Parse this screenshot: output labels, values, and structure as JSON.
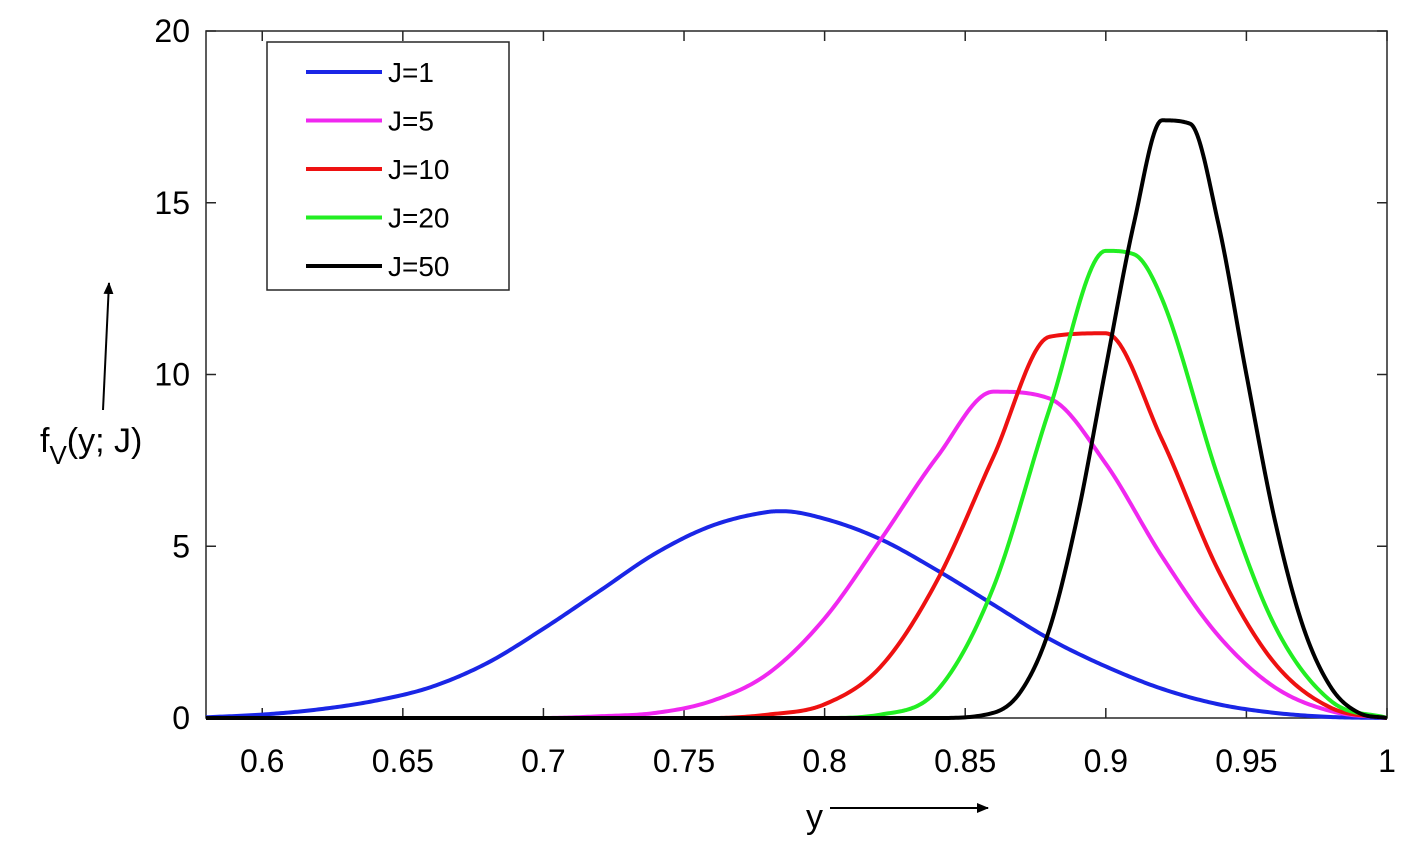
{
  "chart_data": {
    "type": "line",
    "title": "",
    "xlabel": "y",
    "ylabel_main": "f",
    "ylabel_subscript": "V",
    "ylabel_rest": "(y; J)",
    "xlim": [
      0.58,
      1.0
    ],
    "ylim": [
      0,
      20
    ],
    "x_ticks": [
      0.6,
      0.65,
      0.7,
      0.75,
      0.8,
      0.85,
      0.9,
      0.95,
      1.0
    ],
    "x_tick_labels": [
      "0.6",
      "0.65",
      "0.7",
      "0.75",
      "0.8",
      "0.85",
      "0.9",
      "0.95",
      "1"
    ],
    "y_ticks": [
      0,
      5,
      10,
      15,
      20
    ],
    "y_tick_labels": [
      "0",
      "5",
      "10",
      "15",
      "20"
    ],
    "grid": false,
    "legend_position": "top-left",
    "series": [
      {
        "name": "J=1",
        "color": "#1a26e6",
        "x": [
          0.58,
          0.6,
          0.62,
          0.64,
          0.66,
          0.68,
          0.7,
          0.72,
          0.74,
          0.76,
          0.78,
          0.785,
          0.8,
          0.82,
          0.84,
          0.86,
          0.88,
          0.9,
          0.92,
          0.94,
          0.96,
          0.98,
          1.0
        ],
        "y": [
          0.02,
          0.1,
          0.25,
          0.5,
          0.9,
          1.6,
          2.6,
          3.7,
          4.8,
          5.6,
          6.0,
          6.02,
          5.8,
          5.2,
          4.3,
          3.3,
          2.3,
          1.5,
          0.85,
          0.4,
          0.15,
          0.03,
          0.0
        ]
      },
      {
        "name": "J=5",
        "color": "#f028f0",
        "x": [
          0.58,
          0.7,
          0.72,
          0.74,
          0.76,
          0.78,
          0.8,
          0.82,
          0.84,
          0.86,
          0.88,
          0.9,
          0.92,
          0.94,
          0.96,
          0.98,
          1.0
        ],
        "y": [
          0.0,
          0.0,
          0.05,
          0.15,
          0.5,
          1.3,
          2.9,
          5.2,
          7.6,
          9.5,
          9.3,
          7.4,
          4.7,
          2.4,
          0.9,
          0.2,
          0.0
        ]
      },
      {
        "name": "J=10",
        "color": "#ee1111",
        "x": [
          0.58,
          0.76,
          0.78,
          0.8,
          0.82,
          0.84,
          0.86,
          0.88,
          0.9,
          0.92,
          0.94,
          0.96,
          0.98,
          1.0
        ],
        "y": [
          0.0,
          0.0,
          0.1,
          0.4,
          1.5,
          4.0,
          7.6,
          11.1,
          11.2,
          8.1,
          4.3,
          1.6,
          0.3,
          0.0
        ]
      },
      {
        "name": "J=20",
        "color": "#22ee22",
        "x": [
          0.58,
          0.8,
          0.82,
          0.84,
          0.86,
          0.88,
          0.9,
          0.91,
          0.92,
          0.94,
          0.96,
          0.98,
          1.0
        ],
        "y": [
          0.0,
          0.0,
          0.1,
          0.8,
          3.8,
          9.0,
          13.6,
          13.5,
          12.2,
          7.0,
          2.7,
          0.5,
          0.0
        ]
      },
      {
        "name": "J=50",
        "color": "#000000",
        "x": [
          0.58,
          0.84,
          0.86,
          0.87,
          0.88,
          0.89,
          0.9,
          0.91,
          0.92,
          0.93,
          0.94,
          0.95,
          0.96,
          0.97,
          0.98,
          0.99,
          1.0
        ],
        "y": [
          0.0,
          0.0,
          0.15,
          0.8,
          2.6,
          5.9,
          10.2,
          14.4,
          17.4,
          17.3,
          14.4,
          10.0,
          5.8,
          2.7,
          0.9,
          0.15,
          0.0
        ]
      }
    ]
  }
}
